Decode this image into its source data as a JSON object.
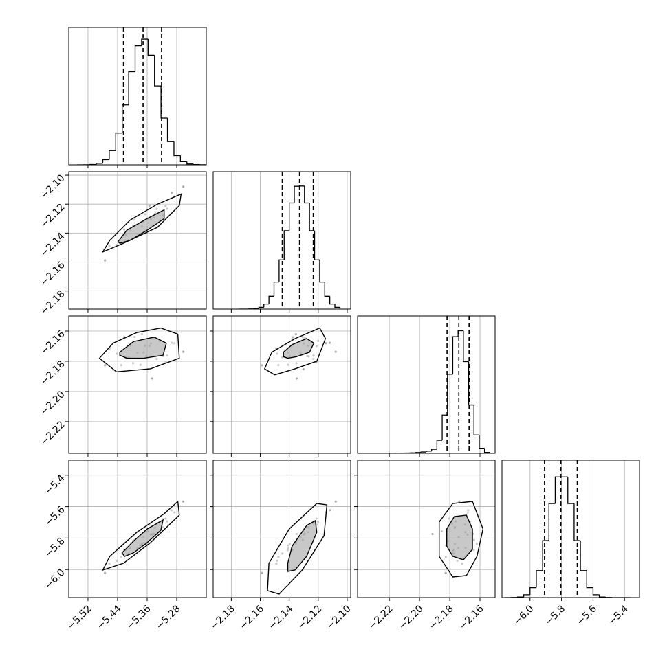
{
  "chart_data": {
    "type": "corner",
    "grid": true,
    "color": "#000000",
    "point_color": "#777777",
    "params": [
      {
        "lim": [
          -5.572,
          -5.2
        ],
        "ticks": [
          {
            "value": -5.52,
            "label": "−5.52"
          },
          {
            "value": -5.44,
            "label": "−5.44"
          },
          {
            "value": -5.36,
            "label": "−5.36"
          },
          {
            "value": -5.28,
            "label": "−5.28"
          }
        ],
        "bins": [
          -5.55,
          -5.5325,
          -5.515,
          -5.4975,
          -5.48,
          -5.4625,
          -5.445,
          -5.4275,
          -5.41,
          -5.3925,
          -5.375,
          -5.3575,
          -5.34,
          -5.3225,
          -5.305,
          -5.2875,
          -5.27,
          -5.2525,
          -5.235,
          -5.2175,
          -5.2
        ],
        "counts": [
          0,
          1,
          5,
          21,
          71,
          197,
          440,
          829,
          1288,
          1647,
          1738,
          1516,
          1091,
          646,
          321,
          129,
          44,
          12,
          3,
          1
        ],
        "count_lim": [
          0,
          1900
        ],
        "quantiles": [
          -5.424,
          -5.371,
          -5.321
        ]
      },
      {
        "lim": [
          -2.1925,
          -2.0976
        ],
        "ticks": [
          {
            "value": -2.18,
            "label": "−2.18"
          },
          {
            "value": -2.16,
            "label": "−2.16"
          },
          {
            "value": -2.14,
            "label": "−2.14"
          },
          {
            "value": -2.12,
            "label": "−2.12"
          },
          {
            "value": -2.1,
            "label": "−2.10"
          }
        ],
        "bins": [
          -2.175,
          -2.1715,
          -2.168,
          -2.1645,
          -2.161,
          -2.1575,
          -2.154,
          -2.1505,
          -2.147,
          -2.1435,
          -2.14,
          -2.1365,
          -2.133,
          -2.1295,
          -2.126,
          -2.1225,
          -2.119,
          -2.1155,
          -2.112,
          -2.1085,
          -2.105
        ],
        "counts": [
          0,
          0,
          2,
          7,
          22,
          63,
          159,
          335,
          610,
          970,
          1313,
          1520,
          1523,
          1313,
          970,
          610,
          335,
          159,
          63,
          22
        ],
        "count_lim": [
          0,
          1700
        ],
        "quantiles": [
          -2.1448,
          -2.1329,
          -2.1234
        ]
      },
      {
        "lim": [
          -2.241,
          -2.15
        ],
        "ticks": [
          {
            "value": -2.22,
            "label": "−2.22"
          },
          {
            "value": -2.2,
            "label": "−2.20"
          },
          {
            "value": -2.18,
            "label": "−2.18"
          },
          {
            "value": -2.16,
            "label": "−2.16"
          }
        ],
        "bins": [
          -2.22,
          -2.2165,
          -2.213,
          -2.2095,
          -2.206,
          -2.2025,
          -2.199,
          -2.1955,
          -2.192,
          -2.1885,
          -2.185,
          -2.1815,
          -2.178,
          -2.1745,
          -2.171,
          -2.1675,
          -2.164,
          -2.1605,
          -2.157,
          -2.1535,
          -2.15
        ],
        "counts": [
          2,
          3,
          4,
          6,
          10,
          16,
          25,
          40,
          75,
          241,
          711,
          1468,
          2165,
          2276,
          1703,
          898,
          341,
          93,
          17,
          2
        ],
        "count_lim": [
          0,
          2550
        ],
        "quantiles": [
          -2.1818,
          -2.174,
          -2.1672
        ]
      },
      {
        "lim": [
          -6.178,
          -5.305
        ],
        "ticks": [
          {
            "value": -6.0,
            "label": "−6.0"
          },
          {
            "value": -5.8,
            "label": "−5.8"
          },
          {
            "value": -5.6,
            "label": "−5.6"
          },
          {
            "value": -5.4,
            "label": "−5.4"
          }
        ],
        "bins": [
          -6.16,
          -6.12,
          -6.08,
          -6.04,
          -6.0,
          -5.96,
          -5.92,
          -5.88,
          -5.84,
          -5.8,
          -5.76,
          -5.72,
          -5.68,
          -5.64,
          -5.6,
          -5.56,
          -5.52,
          -5.48,
          -5.44,
          -5.4,
          -5.36
        ],
        "counts": [
          0,
          2,
          10,
          45,
          159,
          431,
          913,
          1506,
          1933,
          1933,
          1506,
          913,
          431,
          159,
          45,
          10,
          2,
          0,
          0,
          0
        ],
        "count_lim": [
          0,
          2200
        ],
        "quantiles": [
          -5.908,
          -5.804,
          -5.7
        ]
      }
    ],
    "samples": [
      [
        -5.35,
        -2.1301,
        -2.1682,
        -5.778
      ],
      [
        -5.418,
        -2.1411,
        -2.1777,
        -5.877
      ],
      [
        -5.366,
        -2.127,
        -2.1697,
        -5.763
      ],
      [
        -5.306,
        -2.1232,
        -2.1762,
        -5.694
      ],
      [
        -5.386,
        -2.1406,
        -2.1743,
        -5.864
      ],
      [
        -5.334,
        -2.1233,
        -2.1785,
        -5.707
      ],
      [
        -5.442,
        -2.1484,
        -2.175,
        -5.944
      ],
      [
        -5.37,
        -2.1322,
        -2.1741,
        -5.794
      ],
      [
        -5.326,
        -2.1201,
        -2.1665,
        -5.698
      ],
      [
        -5.398,
        -2.1351,
        -2.1813,
        -5.819
      ],
      [
        -5.286,
        -2.1148,
        -2.1681,
        -5.637
      ],
      [
        -5.378,
        -2.141,
        -2.1824,
        -5.847
      ],
      [
        -5.342,
        -2.1293,
        -2.1646,
        -5.773
      ],
      [
        -5.41,
        -2.1447,
        -2.1774,
        -5.898
      ],
      [
        -5.358,
        -2.1302,
        -2.1853,
        -5.757
      ],
      [
        -5.462,
        -2.1489,
        -2.1718,
        -5.963
      ],
      [
        -5.318,
        -2.1276,
        -2.1766,
        -5.731
      ],
      [
        -5.394,
        -2.1307,
        -2.1639,
        -5.812
      ],
      [
        -5.338,
        -2.1265,
        -2.1768,
        -5.734
      ],
      [
        -5.43,
        -2.1475,
        -2.1826,
        -5.92
      ],
      [
        -5.294,
        -2.1121,
        -2.1678,
        -5.623
      ],
      [
        -5.374,
        -2.1354,
        -2.1621,
        -5.836
      ],
      [
        -5.354,
        -2.1211,
        -2.1699,
        -5.714
      ],
      [
        -5.406,
        -2.1383,
        -2.1696,
        -5.863
      ],
      [
        -5.31,
        -2.1213,
        -2.1805,
        -5.676
      ],
      [
        -5.474,
        -2.1588,
        -2.1827,
        -6.022
      ],
      [
        -5.362,
        -2.1397,
        -2.1766,
        -5.838
      ],
      [
        -5.262,
        -2.1079,
        -2.1737,
        -5.568
      ],
      [
        -5.422,
        -2.1376,
        -2.1641,
        -5.875
      ],
      [
        -5.346,
        -2.1349,
        -2.1914,
        -5.774
      ]
    ],
    "contours": [
      [
        [
          [
            -5.48,
            -2.153
          ],
          [
            -5.461,
            -2.145
          ],
          [
            -5.406,
            -2.131
          ],
          [
            -5.332,
            -2.12
          ],
          [
            -5.268,
            -2.113
          ],
          [
            -5.273,
            -2.121
          ],
          [
            -5.332,
            -2.136
          ],
          [
            -5.424,
            -2.147
          ]
        ],
        [
          [
            -5.439,
            -2.146
          ],
          [
            -5.415,
            -2.138
          ],
          [
            -5.36,
            -2.13
          ],
          [
            -5.314,
            -2.124
          ],
          [
            -5.314,
            -2.13
          ],
          [
            -5.36,
            -2.138
          ],
          [
            -5.406,
            -2.145
          ],
          [
            -5.434,
            -2.147
          ]
        ]
      ],
      [
        [
          [
            -5.489,
            -2.178
          ],
          [
            -5.452,
            -2.168
          ],
          [
            -5.388,
            -2.161
          ],
          [
            -5.323,
            -2.158
          ],
          [
            -5.277,
            -2.162
          ],
          [
            -5.273,
            -2.178
          ],
          [
            -5.351,
            -2.185
          ],
          [
            -5.443,
            -2.187
          ]
        ],
        [
          [
            -5.434,
            -2.174
          ],
          [
            -5.397,
            -2.167
          ],
          [
            -5.341,
            -2.164
          ],
          [
            -5.308,
            -2.168
          ],
          [
            -5.317,
            -2.176
          ],
          [
            -5.369,
            -2.178
          ],
          [
            -5.415,
            -2.178
          ],
          [
            -5.434,
            -2.176
          ]
        ]
      ],
      [
        [
          [
            -2.157,
            -2.185
          ],
          [
            -2.152,
            -2.174
          ],
          [
            -2.136,
            -2.165
          ],
          [
            -2.119,
            -2.158
          ],
          [
            -2.115,
            -2.165
          ],
          [
            -2.121,
            -2.18
          ],
          [
            -2.136,
            -2.185
          ],
          [
            -2.15,
            -2.189
          ]
        ],
        [
          [
            -2.144,
            -2.174
          ],
          [
            -2.138,
            -2.169
          ],
          [
            -2.128,
            -2.165
          ],
          [
            -2.123,
            -2.168
          ],
          [
            -2.126,
            -2.174
          ],
          [
            -2.135,
            -2.177
          ],
          [
            -2.141,
            -2.178
          ],
          [
            -2.144,
            -2.177
          ]
        ]
      ],
      [
        [
          [
            -5.48,
            -6.003
          ],
          [
            -5.461,
            -5.916
          ],
          [
            -5.388,
            -5.763
          ],
          [
            -5.314,
            -5.645
          ],
          [
            -5.277,
            -5.567
          ],
          [
            -5.273,
            -5.654
          ],
          [
            -5.351,
            -5.829
          ],
          [
            -5.424,
            -5.96
          ]
        ],
        [
          [
            -5.428,
            -5.894
          ],
          [
            -5.397,
            -5.82
          ],
          [
            -5.36,
            -5.742
          ],
          [
            -5.317,
            -5.685
          ],
          [
            -5.323,
            -5.75
          ],
          [
            -5.36,
            -5.829
          ],
          [
            -5.397,
            -5.894
          ],
          [
            -5.421,
            -5.916
          ]
        ]
      ],
      [
        [
          [
            -2.155,
            -6.134
          ],
          [
            -2.154,
            -5.96
          ],
          [
            -2.14,
            -5.742
          ],
          [
            -2.121,
            -5.58
          ],
          [
            -2.114,
            -5.589
          ],
          [
            -2.116,
            -5.785
          ],
          [
            -2.131,
            -6.003
          ],
          [
            -2.147,
            -6.156
          ]
        ],
        [
          [
            -2.141,
            -5.96
          ],
          [
            -2.138,
            -5.851
          ],
          [
            -2.128,
            -5.72
          ],
          [
            -2.122,
            -5.689
          ],
          [
            -2.121,
            -5.763
          ],
          [
            -2.128,
            -5.916
          ],
          [
            -2.136,
            -6.003
          ],
          [
            -2.141,
            -6.012
          ]
        ]
      ],
      [
        [
          [
            -2.187,
            -5.698
          ],
          [
            -2.178,
            -5.58
          ],
          [
            -2.165,
            -5.567
          ],
          [
            -2.158,
            -5.742
          ],
          [
            -2.162,
            -5.916
          ],
          [
            -2.169,
            -6.038
          ],
          [
            -2.178,
            -6.047
          ],
          [
            -2.187,
            -5.916
          ]
        ],
        [
          [
            -2.182,
            -5.742
          ],
          [
            -2.177,
            -5.663
          ],
          [
            -2.169,
            -5.654
          ],
          [
            -2.165,
            -5.742
          ],
          [
            -2.165,
            -5.872
          ],
          [
            -2.171,
            -5.938
          ],
          [
            -2.178,
            -5.916
          ],
          [
            -2.182,
            -5.851
          ]
        ]
      ]
    ]
  }
}
